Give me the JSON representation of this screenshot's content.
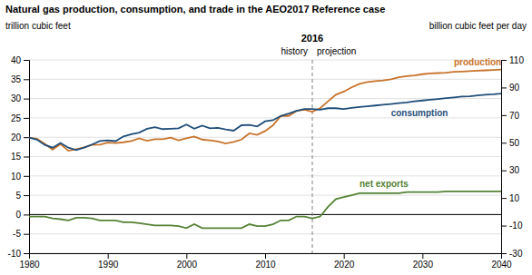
{
  "chart_data": {
    "type": "line",
    "title": "Natural gas production, consumption, and trade in the AEO2017 Reference case",
    "ylabel": "trillion cubic feet",
    "y2label": "billion cubic feet per day",
    "divider": {
      "x": 2016
    },
    "annotations": [
      "history",
      "projection"
    ],
    "hline": 0,
    "xlim": [
      1980,
      2040
    ],
    "xticks": [
      1980,
      1990,
      2000,
      2010,
      2020,
      2030,
      2040
    ],
    "ylim": [
      -10,
      40
    ],
    "yticks": [
      -10,
      -5,
      0,
      5,
      10,
      15,
      20,
      25,
      30,
      35,
      40
    ],
    "y2lim": [
      -30,
      110
    ],
    "y2ticks": [
      -30,
      -10,
      10,
      30,
      50,
      70,
      90,
      110
    ],
    "grid": true,
    "x": [
      1980,
      1981,
      1982,
      1983,
      1984,
      1985,
      1986,
      1987,
      1988,
      1989,
      1990,
      1991,
      1992,
      1993,
      1994,
      1995,
      1996,
      1997,
      1998,
      1999,
      2000,
      2001,
      2002,
      2003,
      2004,
      2005,
      2006,
      2007,
      2008,
      2009,
      2010,
      2011,
      2012,
      2013,
      2014,
      2015,
      2016,
      2017,
      2018,
      2019,
      2020,
      2021,
      2022,
      2023,
      2024,
      2025,
      2026,
      2027,
      2028,
      2029,
      2030,
      2031,
      2032,
      2033,
      2034,
      2035,
      2036,
      2037,
      2038,
      2039,
      2040
    ],
    "series": [
      {
        "name": "production",
        "color": "#c8722a",
        "values": [
          19.9,
          19.6,
          18.3,
          16.8,
          18.2,
          16.5,
          16.9,
          17.4,
          18.0,
          18.1,
          18.6,
          18.5,
          18.7,
          19.0,
          19.7,
          19.1,
          19.5,
          19.5,
          19.9,
          19.2,
          19.7,
          20.2,
          19.4,
          19.2,
          18.9,
          18.4,
          18.8,
          19.4,
          21.0,
          20.6,
          21.6,
          23.1,
          25.5,
          25.5,
          26.8,
          27.1,
          26.6,
          27.5,
          29.3,
          31.0,
          31.8,
          32.9,
          33.8,
          34.3,
          34.5,
          34.7,
          35.0,
          35.5,
          35.8,
          36.0,
          36.3,
          36.5,
          36.6,
          36.7,
          36.9,
          37.0,
          37.1,
          37.2,
          37.3,
          37.4,
          37.5
        ]
      },
      {
        "name": "consumption",
        "color": "#1f4e79",
        "values": [
          19.9,
          19.4,
          18.0,
          17.3,
          18.5,
          17.3,
          16.7,
          17.3,
          18.1,
          19.0,
          19.2,
          19.0,
          20.2,
          20.8,
          21.2,
          22.2,
          22.6,
          22.1,
          22.2,
          22.3,
          23.3,
          22.2,
          23.0,
          22.3,
          22.4,
          22.0,
          21.7,
          23.1,
          23.2,
          22.8,
          24.1,
          24.4,
          25.5,
          26.1,
          26.8,
          27.3,
          27.3,
          27.1,
          27.5,
          27.5,
          27.3,
          27.6,
          27.8,
          28.0,
          28.2,
          28.4,
          28.6,
          28.8,
          29.0,
          29.3,
          29.5,
          29.7,
          29.9,
          30.1,
          30.3,
          30.5,
          30.6,
          30.8,
          31.0,
          31.1,
          31.3
        ]
      },
      {
        "name": "net exports",
        "color": "#548235",
        "values": [
          -0.5,
          -0.5,
          -0.5,
          -1.0,
          -1.2,
          -1.5,
          -0.8,
          -0.8,
          -1.0,
          -1.5,
          -1.5,
          -1.5,
          -2.0,
          -2.0,
          -2.2,
          -2.5,
          -2.8,
          -2.8,
          -2.8,
          -3.0,
          -3.5,
          -2.5,
          -3.5,
          -3.5,
          -3.5,
          -3.5,
          -3.5,
          -3.5,
          -2.5,
          -3.0,
          -3.0,
          -2.5,
          -1.5,
          -1.5,
          -0.5,
          -0.5,
          -1.0,
          -0.5,
          2.0,
          4.0,
          4.5,
          5.0,
          5.5,
          5.5,
          5.5,
          5.5,
          5.5,
          5.5,
          5.8,
          5.8,
          5.8,
          5.8,
          5.8,
          6.0,
          6.0,
          6.0,
          6.0,
          6.0,
          6.0,
          6.0,
          6.0
        ]
      }
    ]
  }
}
